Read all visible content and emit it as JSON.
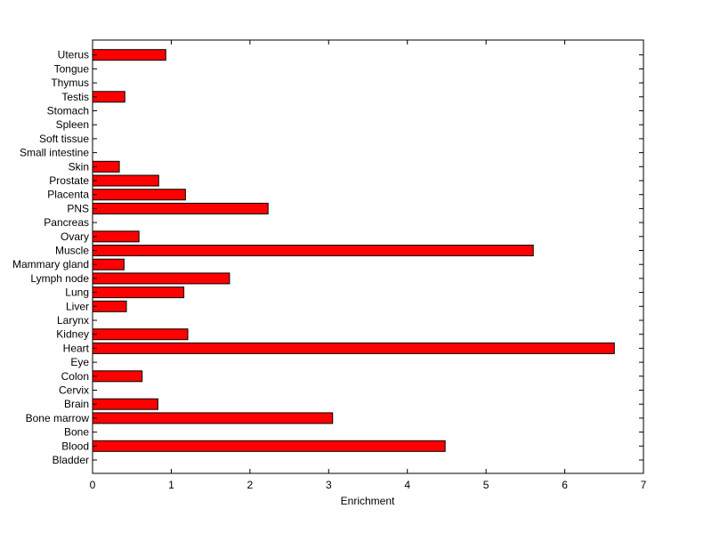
{
  "chart_data": {
    "type": "bar",
    "orientation": "horizontal",
    "xlabel": "Enrichment",
    "ylabel": "",
    "title": "",
    "xlim": [
      0,
      7
    ],
    "xticks": [
      0,
      1,
      2,
      3,
      4,
      5,
      6,
      7
    ],
    "bar_color": "#ff0000",
    "bar_edge_color": "#000000",
    "grid": false,
    "categories": [
      "Bladder",
      "Blood",
      "Bone",
      "Bone marrow",
      "Brain",
      "Cervix",
      "Colon",
      "Eye",
      "Heart",
      "Kidney",
      "Larynx",
      "Liver",
      "Lung",
      "Lymph node",
      "Mammary gland",
      "Muscle",
      "Ovary",
      "Pancreas",
      "PNS",
      "Placenta",
      "Prostate",
      "Skin",
      "Small intestine",
      "Soft tissue",
      "Spleen",
      "Stomach",
      "Testis",
      "Thymus",
      "Tongue",
      "Uterus"
    ],
    "values": [
      0,
      4.48,
      0,
      3.05,
      0.83,
      0,
      0.63,
      0,
      6.63,
      1.21,
      0,
      0.43,
      1.16,
      1.74,
      0.4,
      5.6,
      0.59,
      0,
      2.23,
      1.18,
      0.84,
      0.34,
      0,
      0,
      0,
      0,
      0.41,
      0,
      0,
      0.93
    ]
  }
}
